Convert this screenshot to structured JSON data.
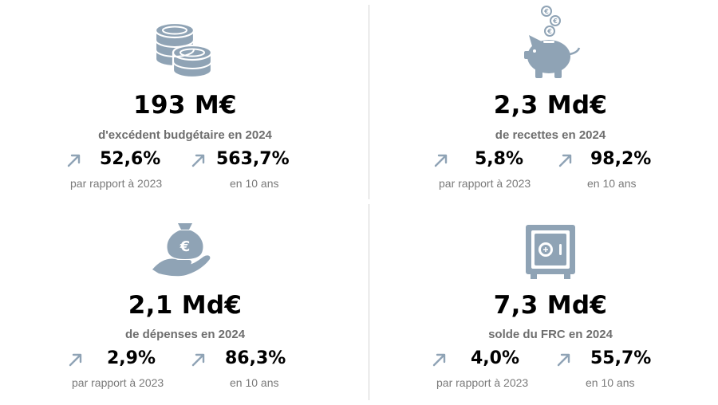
{
  "colors": {
    "icon": "#8fa3b5",
    "icon_dark": "#7f95a9",
    "caption": "#7a7a7a",
    "subtitle": "#6e6e6e",
    "divider": "#d4d4d4"
  },
  "cards": [
    {
      "icon": "coins-icon",
      "value": "193 M€",
      "label": "d'excédent budgétaire en 2024",
      "stats": [
        {
          "arrow": "arrow-up-right-icon",
          "value": "52,6%",
          "caption": "par rapport à 2023"
        },
        {
          "arrow": "arrow-up-right-icon",
          "value": "563,7%",
          "caption": "en 10 ans"
        }
      ]
    },
    {
      "icon": "piggy-bank-icon",
      "value": "2,3 Md€",
      "label": "de recettes en 2024",
      "stats": [
        {
          "arrow": "arrow-up-right-icon",
          "value": "5,8%",
          "caption": "par rapport à 2023"
        },
        {
          "arrow": "arrow-up-right-icon",
          "value": "98,2%",
          "caption": "en 10 ans"
        }
      ]
    },
    {
      "icon": "money-bag-hand-icon",
      "value": "2,1 Md€",
      "label": "de dépenses en 2024",
      "stats": [
        {
          "arrow": "arrow-up-right-icon",
          "value": "2,9%",
          "caption": "par rapport à 2023"
        },
        {
          "arrow": "arrow-up-right-icon",
          "value": "86,3%",
          "caption": "en 10 ans"
        }
      ]
    },
    {
      "icon": "safe-icon",
      "value": "7,3 Md€",
      "label": "solde du FRC en 2024",
      "stats": [
        {
          "arrow": "arrow-up-right-icon",
          "value": "4,0%",
          "caption": "par rapport à 2023"
        },
        {
          "arrow": "arrow-up-right-icon",
          "value": "55,7%",
          "caption": "en 10 ans"
        }
      ]
    }
  ]
}
